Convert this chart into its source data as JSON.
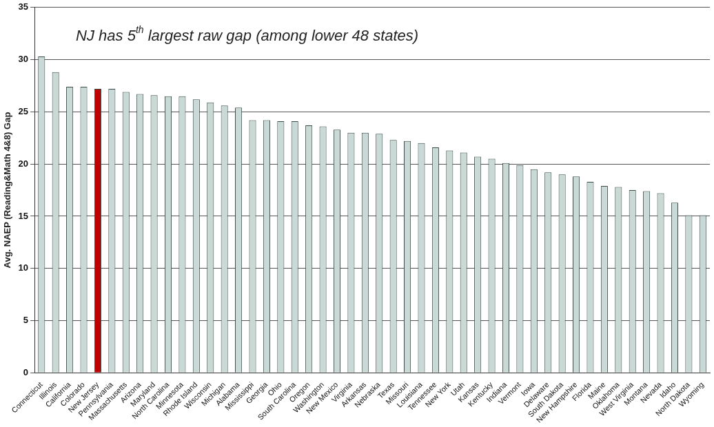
{
  "chart_data": {
    "type": "bar",
    "annotations": [
      "NJ has 5$^{th}$ largest raw gap (among lower 48 states)"
    ],
    "ylabel": "Avg. NAEP (Reading&Math 4&8) Gap",
    "categories": [
      "Connecticut",
      "Illinois",
      "California",
      "Colorado",
      "New Jersey",
      "Pennsylvania",
      "Massachusetts",
      "Arizona",
      "Maryland",
      "North Carolina",
      "Minnesota",
      "Rhode Island",
      "Wisconsin",
      "Michigan",
      "Alabama",
      "Mississippi",
      "Georgia",
      "Ohio",
      "South Carolina",
      "Oregon",
      "Washington",
      "New Mexico",
      "Virginia",
      "Arkansas",
      "Nebraska",
      "Texas",
      "Missouri",
      "Louisiana",
      "Tennessee",
      "New York",
      "Utah",
      "Kansas",
      "Kentucky",
      "Indiana",
      "Vermont",
      "Iowa",
      "Delaware",
      "South Dakota",
      "New Hampshire",
      "Florida",
      "Maine",
      "Oklahoma",
      "West Virginia",
      "Montana",
      "Nevada",
      "Idaho",
      "North Dakota",
      "Wyoming"
    ],
    "values": [
      30.3,
      28.8,
      27.4,
      27.4,
      27.2,
      27.2,
      26.9,
      26.7,
      26.6,
      26.5,
      26.5,
      26.2,
      25.9,
      25.6,
      25.4,
      24.2,
      24.2,
      24.1,
      24.1,
      23.7,
      23.6,
      23.3,
      23.0,
      23.0,
      22.9,
      22.3,
      22.2,
      22.0,
      21.6,
      21.3,
      21.1,
      20.7,
      20.5,
      20.1,
      19.9,
      19.5,
      19.2,
      19.0,
      18.8,
      18.3,
      17.9,
      17.8,
      17.5,
      17.4,
      17.2,
      16.3,
      15.1,
      15.1
    ],
    "colors": [
      "#c9dad6",
      "#c9dad6",
      "#c9dad6",
      "#c9dad6",
      "#c00000",
      "#c9dad6",
      "#c9dad6",
      "#c9dad6",
      "#c9dad6",
      "#c9dad6",
      "#c9dad6",
      "#c9dad6",
      "#c9dad6",
      "#c9dad6",
      "#c9dad6",
      "#c9dad6",
      "#c9dad6",
      "#c9dad6",
      "#c9dad6",
      "#c9dad6",
      "#c9dad6",
      "#c9dad6",
      "#c9dad6",
      "#c9dad6",
      "#c9dad6",
      "#c9dad6",
      "#c9dad6",
      "#c9dad6",
      "#c9dad6",
      "#c9dad6",
      "#c9dad6",
      "#c9dad6",
      "#c9dad6",
      "#c9dad6",
      "#c9dad6",
      "#c9dad6",
      "#c9dad6",
      "#c9dad6",
      "#c9dad6",
      "#c9dad6",
      "#c9dad6",
      "#c9dad6",
      "#c9dad6",
      "#c9dad6",
      "#c9dad6",
      "#c9dad6",
      "#c9dad6",
      "#c9dad6"
    ],
    "ylim": [
      0,
      35
    ],
    "yticks": [
      0,
      5,
      10,
      15,
      20,
      25,
      30,
      35
    ],
    "grid": "y",
    "legend": false
  }
}
